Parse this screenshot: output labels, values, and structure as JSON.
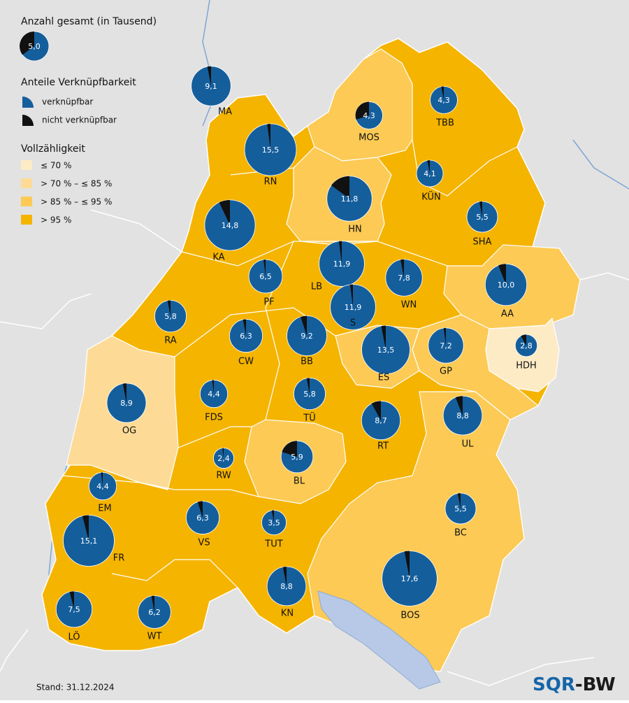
{
  "legend": {
    "size_title": "Anzahl gesamt (in Tausend)",
    "size_example": {
      "value": 5.0,
      "label": "5,0",
      "non_linkable_pct": 35
    },
    "share_title": "Anteile Verknüpfbarkeit",
    "share_items": [
      {
        "label": "verknüpfbar",
        "color": "#155e9c"
      },
      {
        "label": "nicht verknüpfbar",
        "color": "#111111"
      }
    ],
    "class_title": "Vollzähligkeit",
    "classes": [
      {
        "label": "≤ 70 %",
        "color": "#fdebc6"
      },
      {
        "label": "> 70 % – ≤ 85 %",
        "color": "#fddb96"
      },
      {
        "label": "> 85 % – ≤ 95 %",
        "color": "#fcca55"
      },
      {
        "label": "> 95 %",
        "color": "#f5b400"
      }
    ]
  },
  "districts": [
    {
      "code": "MA",
      "total": 9.1,
      "total_label": "9,1",
      "non_linkable_pct": 3,
      "class": 3
    },
    {
      "code": "RN",
      "total": 15.5,
      "total_label": "15,5",
      "non_linkable_pct": 2,
      "class": 3
    },
    {
      "code": "MOS",
      "total": 4.3,
      "total_label": "4,3",
      "non_linkable_pct": 30,
      "class": 2
    },
    {
      "code": "TBB",
      "total": 4.3,
      "total_label": "4,3",
      "non_linkable_pct": 3,
      "class": 3
    },
    {
      "code": "KÜN",
      "total": 4.1,
      "total_label": "4,1",
      "non_linkable_pct": 3,
      "class": 3
    },
    {
      "code": "HN",
      "total": 11.8,
      "total_label": "11,8",
      "non_linkable_pct": 15,
      "class": 2
    },
    {
      "code": "SHA",
      "total": 5.5,
      "total_label": "5,5",
      "non_linkable_pct": 3,
      "class": 3
    },
    {
      "code": "KA",
      "total": 14.8,
      "total_label": "14,8",
      "non_linkable_pct": 7,
      "class": 3
    },
    {
      "code": "PF",
      "total": 6.5,
      "total_label": "6,5",
      "non_linkable_pct": 2,
      "class": 3
    },
    {
      "code": "LB",
      "total": 11.9,
      "total_label": "11,9",
      "non_linkable_pct": 2,
      "class": 3
    },
    {
      "code": "AA",
      "total": 10.0,
      "total_label": "10,0",
      "non_linkable_pct": 6,
      "class": 2
    },
    {
      "code": "WN",
      "total": 7.8,
      "total_label": "7,8",
      "non_linkable_pct": 3,
      "class": 3
    },
    {
      "code": "S",
      "total": 11.9,
      "total_label": "11,9",
      "non_linkable_pct": 2,
      "class": 3
    },
    {
      "code": "RA",
      "total": 5.8,
      "total_label": "5,8",
      "non_linkable_pct": 3,
      "class": 3
    },
    {
      "code": "CW",
      "total": 6.3,
      "total_label": "6,3",
      "non_linkable_pct": 3,
      "class": 3
    },
    {
      "code": "BB",
      "total": 9.2,
      "total_label": "9,2",
      "non_linkable_pct": 5,
      "class": 3
    },
    {
      "code": "ES",
      "total": 13.5,
      "total_label": "13,5",
      "non_linkable_pct": 3,
      "class": 2
    },
    {
      "code": "GP",
      "total": 7.2,
      "total_label": "7,2",
      "non_linkable_pct": 2,
      "class": 2
    },
    {
      "code": "HDH",
      "total": 2.8,
      "total_label": "2,8",
      "non_linkable_pct": 8,
      "class": 0
    },
    {
      "code": "OG",
      "total": 8.9,
      "total_label": "8,9",
      "non_linkable_pct": 3,
      "class": 1
    },
    {
      "code": "FDS",
      "total": 4.4,
      "total_label": "4,4",
      "non_linkable_pct": 2,
      "class": 3
    },
    {
      "code": "TÜ",
      "total": 5.8,
      "total_label": "5,8",
      "non_linkable_pct": 3,
      "class": 3
    },
    {
      "code": "RT",
      "total": 8.7,
      "total_label": "8,7",
      "non_linkable_pct": 8,
      "class": 3
    },
    {
      "code": "UL",
      "total": 8.8,
      "total_label": "8,8",
      "non_linkable_pct": 6,
      "class": 2
    },
    {
      "code": "BL",
      "total": 5.9,
      "total_label": "5,9",
      "non_linkable_pct": 20,
      "class": 2
    },
    {
      "code": "RW",
      "total": 2.4,
      "total_label": "2,4",
      "non_linkable_pct": 2,
      "class": 3
    },
    {
      "code": "EM",
      "total": 4.4,
      "total_label": "4,4",
      "non_linkable_pct": 2,
      "class": 3
    },
    {
      "code": "BC",
      "total": 5.5,
      "total_label": "5,5",
      "non_linkable_pct": 3,
      "class": 2
    },
    {
      "code": "VS",
      "total": 6.3,
      "total_label": "6,3",
      "non_linkable_pct": 5,
      "class": 3
    },
    {
      "code": "TUT",
      "total": 3.5,
      "total_label": "3,5",
      "non_linkable_pct": 3,
      "class": 3
    },
    {
      "code": "FR",
      "total": 15.1,
      "total_label": "15,1",
      "non_linkable_pct": 4,
      "class": 3
    },
    {
      "code": "KN",
      "total": 8.8,
      "total_label": "8,8",
      "non_linkable_pct": 3,
      "class": 3
    },
    {
      "code": "BOS",
      "total": 17.6,
      "total_label": "17,6",
      "non_linkable_pct": 3,
      "class": 2
    },
    {
      "code": "LÖ",
      "total": 7.5,
      "total_label": "7,5",
      "non_linkable_pct": 4,
      "class": 3
    },
    {
      "code": "WT",
      "total": 6.2,
      "total_label": "6,2",
      "non_linkable_pct": 3,
      "class": 3
    }
  ],
  "footer": "Stand: 31.12.2024",
  "logo": [
    "SQR",
    "-BW"
  ]
}
